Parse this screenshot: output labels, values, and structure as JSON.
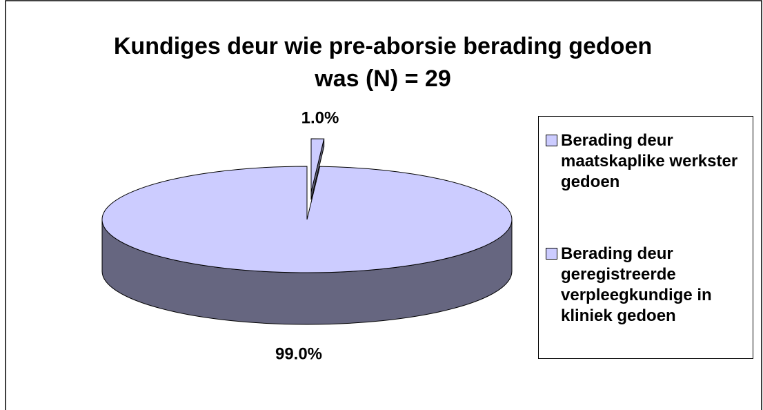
{
  "chart_data": {
    "type": "pie3d",
    "title": "Kundiges deur wie pre-aborsie berading gedoen was (N) = 29",
    "categories": [
      "Berading deur maatskaplike werkster gedoen",
      "Berading deur geregistreerde verpleegkundige in kliniek gedoen"
    ],
    "values": [
      1.0,
      99.0
    ],
    "value_labels": [
      "1.0%",
      "99.0%"
    ],
    "colors": [
      "#ccccff",
      "#ccccff"
    ],
    "side_color": "#666680",
    "legend": "right"
  }
}
